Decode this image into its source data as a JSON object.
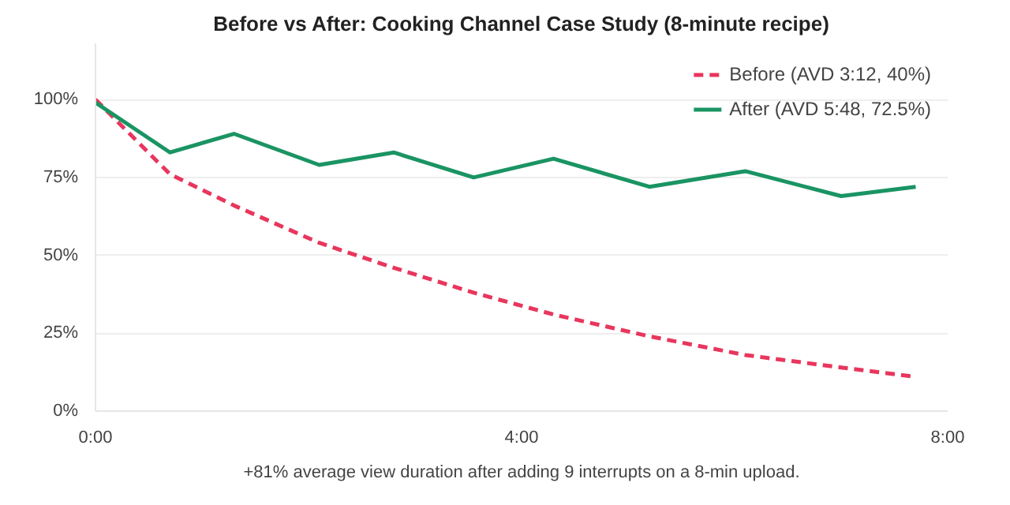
{
  "chart_data": {
    "type": "line",
    "title": "Before vs After: Cooking Channel Case Study (8-minute recipe)",
    "x": [
      0,
      0.7,
      1.3,
      2.1,
      2.8,
      3.55,
      4.3,
      5.2,
      6.1,
      7.0,
      7.7
    ],
    "series": [
      {
        "name": "Before (AVD 3:12, 40%)",
        "color": "#e8365d",
        "line_style": "dashed",
        "values": [
          100,
          76,
          66,
          54,
          46,
          38,
          31,
          24,
          18,
          14,
          11
        ]
      },
      {
        "name": "After (AVD 5:48, 72.5%)",
        "color": "#1a9463",
        "line_style": "solid",
        "values": [
          99,
          83,
          89,
          79,
          83,
          75,
          81,
          72,
          77,
          69,
          72
        ]
      }
    ],
    "xlim": [
      0,
      8
    ],
    "xticks": [
      {
        "value": 0,
        "label": "0:00"
      },
      {
        "value": 4,
        "label": "4:00"
      },
      {
        "value": 8,
        "label": "8:00"
      }
    ],
    "ylim": [
      0,
      118
    ],
    "yticks": [
      {
        "value": 0,
        "label": "0%"
      },
      {
        "value": 25,
        "label": "25%"
      },
      {
        "value": 50,
        "label": "50%"
      },
      {
        "value": 75,
        "label": "75%"
      },
      {
        "value": 100,
        "label": "100%"
      }
    ],
    "grid": "y",
    "legend": "top right",
    "marker": "none",
    "annotations": [
      "+81% average view duration after adding 9 interrupts on a 8-min upload."
    ]
  }
}
